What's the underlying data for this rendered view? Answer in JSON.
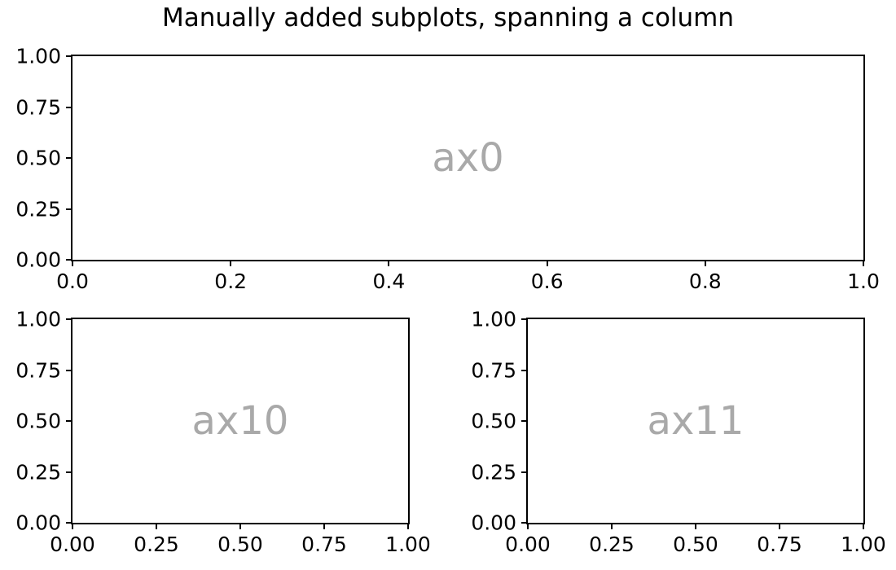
{
  "title": "Manually added subplots, spanning a column",
  "colors": {
    "background": "#ffffff",
    "spine": "#000000",
    "tick_label": "#000000",
    "axes_label": "#a9a9a9"
  },
  "chart_data": [
    {
      "type": "empty-axes",
      "id": "ax0",
      "label": "ax0",
      "label_color": "#a9a9a9",
      "xlim": [
        0.0,
        1.0
      ],
      "ylim": [
        0.0,
        1.0
      ],
      "xticks": [
        0.0,
        0.2,
        0.4,
        0.6,
        0.8,
        1.0
      ],
      "xtick_labels": [
        "0.0",
        "0.2",
        "0.4",
        "0.6",
        "0.8",
        "1.0"
      ],
      "yticks": [
        0.0,
        0.25,
        0.5,
        0.75,
        1.0
      ],
      "ytick_labels": [
        "0.00",
        "0.25",
        "0.50",
        "0.75",
        "1.00"
      ],
      "grid": false,
      "legend": false
    },
    {
      "type": "empty-axes",
      "id": "ax10",
      "label": "ax10",
      "label_color": "#a9a9a9",
      "xlim": [
        0.0,
        1.0
      ],
      "ylim": [
        0.0,
        1.0
      ],
      "xticks": [
        0.0,
        0.25,
        0.5,
        0.75,
        1.0
      ],
      "xtick_labels": [
        "0.00",
        "0.25",
        "0.50",
        "0.75",
        "1.00"
      ],
      "yticks": [
        0.0,
        0.25,
        0.5,
        0.75,
        1.0
      ],
      "ytick_labels": [
        "0.00",
        "0.25",
        "0.50",
        "0.75",
        "1.00"
      ],
      "grid": false,
      "legend": false
    },
    {
      "type": "empty-axes",
      "id": "ax11",
      "label": "ax11",
      "label_color": "#a9a9a9",
      "xlim": [
        0.0,
        1.0
      ],
      "ylim": [
        0.0,
        1.0
      ],
      "xticks": [
        0.0,
        0.25,
        0.5,
        0.75,
        1.0
      ],
      "xtick_labels": [
        "0.00",
        "0.25",
        "0.50",
        "0.75",
        "1.00"
      ],
      "yticks": [
        0.0,
        0.25,
        0.5,
        0.75,
        1.0
      ],
      "ytick_labels": [
        "0.00",
        "0.25",
        "0.50",
        "0.75",
        "1.00"
      ],
      "grid": false,
      "legend": false
    }
  ]
}
